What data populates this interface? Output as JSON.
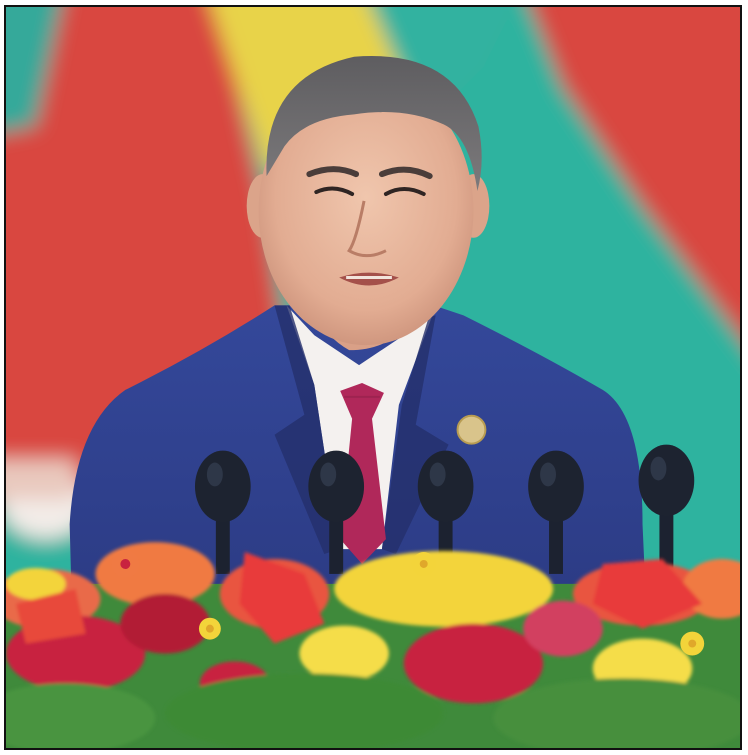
{
  "photo": {
    "subject": "speaker-at-podium",
    "colors": {
      "flag_red": "#d9473f",
      "flag_teal": "#2fb39f",
      "flag_yellow": "#e8d34a",
      "suit_navy": "#2e3f86",
      "tie_magenta": "#b0285a",
      "shirt_white": "#f4f1ef",
      "skin": "#e7b9a0",
      "hair_gray": "#6f6e70",
      "flower_red": "#c8233f",
      "flower_orange": "#f07a43",
      "flower_yellow": "#f3d43a",
      "leaf_green": "#3f8a3b",
      "mic_dark": "#1d2330"
    },
    "icons": [
      "lapel-pin-icon",
      "microphone-icon",
      "flower-icon"
    ]
  }
}
